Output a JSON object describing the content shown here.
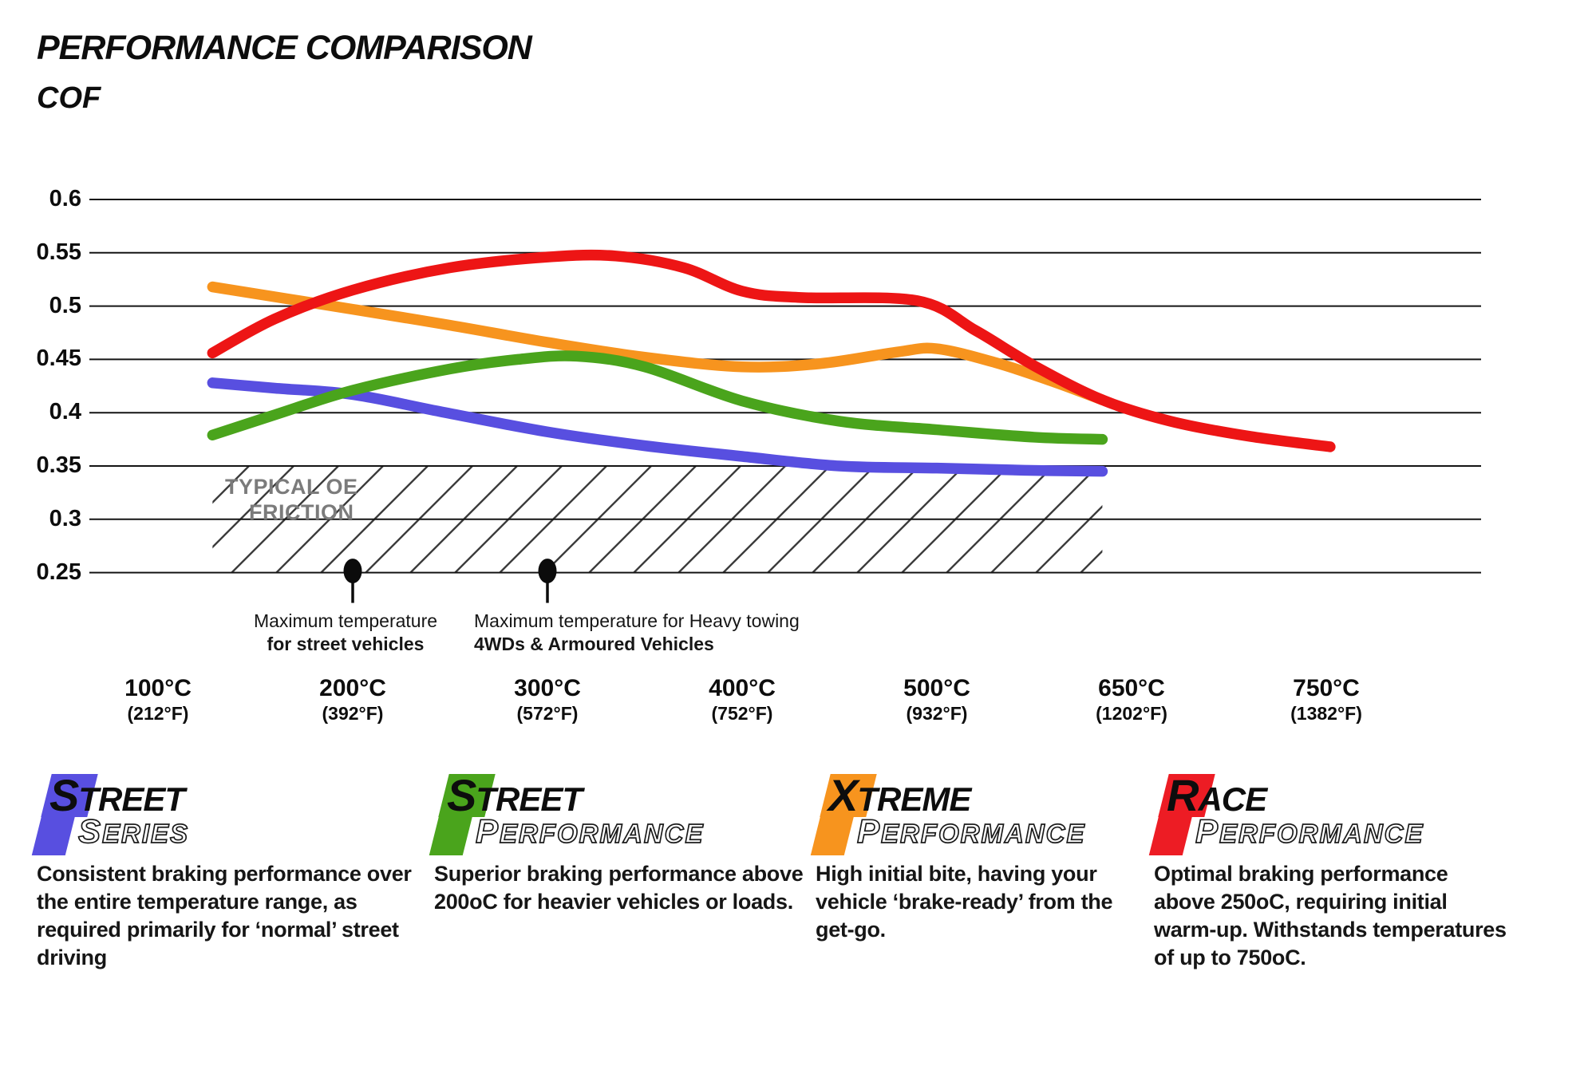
{
  "title": "PERFORMANCE COMPARISON",
  "y_axis_title": "COF",
  "chart_data": {
    "type": "line",
    "title": "PERFORMANCE COMPARISON",
    "ylabel": "COF",
    "grid": "horizontal-only",
    "ylim": [
      0.25,
      0.625
    ],
    "y_ticks": [
      0.6,
      0.55,
      0.5,
      0.45,
      0.4,
      0.35,
      0.3,
      0.25
    ],
    "x_categories": [
      {
        "label": "100°C",
        "sub": "(212°F)"
      },
      {
        "label": "200°C",
        "sub": "(392°F)"
      },
      {
        "label": "300°C",
        "sub": "(572°F)"
      },
      {
        "label": "400°C",
        "sub": "(752°F)"
      },
      {
        "label": "500°C",
        "sub": "(932°F)"
      },
      {
        "label": "650°C",
        "sub": "(1202°F)"
      },
      {
        "label": "750°C",
        "sub": "(1382°F)"
      }
    ],
    "x_note": "series points use fractional category-slot positions (0 = 100°C slot, 6 = 750°C slot)",
    "series": [
      {
        "name": "Street Series",
        "color": "#584fe0",
        "points": [
          [
            0.28,
            0.428
          ],
          [
            0.6,
            0.423
          ],
          [
            1.0,
            0.417
          ],
          [
            1.45,
            0.401
          ],
          [
            2.0,
            0.382
          ],
          [
            2.5,
            0.369
          ],
          [
            3.0,
            0.359
          ],
          [
            3.5,
            0.35
          ],
          [
            4.0,
            0.348
          ],
          [
            4.45,
            0.346
          ],
          [
            4.85,
            0.345
          ]
        ]
      },
      {
        "name": "Xtreme Performance",
        "color": "#f7941e",
        "points": [
          [
            0.28,
            0.518
          ],
          [
            1.0,
            0.497
          ],
          [
            1.5,
            0.482
          ],
          [
            2.0,
            0.466
          ],
          [
            2.5,
            0.452
          ],
          [
            3.0,
            0.443
          ],
          [
            3.4,
            0.446
          ],
          [
            3.8,
            0.457
          ],
          [
            4.0,
            0.46
          ],
          [
            4.3,
            0.447
          ],
          [
            4.6,
            0.429
          ],
          [
            4.85,
            0.412
          ]
        ]
      },
      {
        "name": "Street Performance",
        "color": "#4aa41c",
        "points": [
          [
            0.28,
            0.379
          ],
          [
            0.6,
            0.398
          ],
          [
            1.0,
            0.421
          ],
          [
            1.5,
            0.441
          ],
          [
            1.85,
            0.45
          ],
          [
            2.15,
            0.453
          ],
          [
            2.5,
            0.443
          ],
          [
            3.0,
            0.411
          ],
          [
            3.5,
            0.392
          ],
          [
            4.0,
            0.384
          ],
          [
            4.5,
            0.377
          ],
          [
            4.85,
            0.375
          ]
        ]
      },
      {
        "name": "Race Performance",
        "color": "#ed1515",
        "points": [
          [
            0.28,
            0.456
          ],
          [
            0.6,
            0.488
          ],
          [
            1.0,
            0.515
          ],
          [
            1.5,
            0.536
          ],
          [
            2.0,
            0.546
          ],
          [
            2.35,
            0.547
          ],
          [
            2.7,
            0.536
          ],
          [
            3.0,
            0.514
          ],
          [
            3.3,
            0.508
          ],
          [
            3.9,
            0.505
          ],
          [
            4.2,
            0.477
          ],
          [
            4.5,
            0.444
          ],
          [
            4.85,
            0.412
          ],
          [
            5.2,
            0.392
          ],
          [
            5.6,
            0.378
          ],
          [
            6.02,
            0.368
          ]
        ]
      }
    ],
    "oe_band": {
      "label_line1": "TYPICAL OE",
      "label_line2": "FRICTION",
      "value_from": 0.25,
      "value_to": 0.35,
      "slot_from": 0.28,
      "slot_to": 4.85
    },
    "markers": [
      {
        "slot": 1.0,
        "value": 0.25,
        "line1": "Maximum temperature",
        "line2": "for street vehicles",
        "align": "center"
      },
      {
        "slot": 2.0,
        "value": 0.25,
        "line1": "Maximum temperature for Heavy towing",
        "line2": "4WDs & Armoured Vehicles",
        "align": "left"
      }
    ]
  },
  "legend": [
    {
      "word1": "STREET",
      "word2": "SERIES",
      "color": "#584fe0",
      "description": "Consistent braking performance over the entire temperature range, as required primarily for ‘normal’ street driving"
    },
    {
      "word1": "STREET",
      "word2": "PERFORMANCE",
      "color": "#4aa41c",
      "description": "Superior braking performance above 200oC for heavier vehicles or loads."
    },
    {
      "word1": "XTREME",
      "word2": "PERFORMANCE",
      "color": "#f7941e",
      "description": "High initial bite, having your vehicle ‘brake-ready’ from the get-go."
    },
    {
      "word1": "RACE",
      "word2": "PERFORMANCE",
      "color": "#ed1c24",
      "description": "Optimal braking performance above 250oC, requiring initial warm-up. Withstands temperatures of up to 750oC."
    }
  ]
}
